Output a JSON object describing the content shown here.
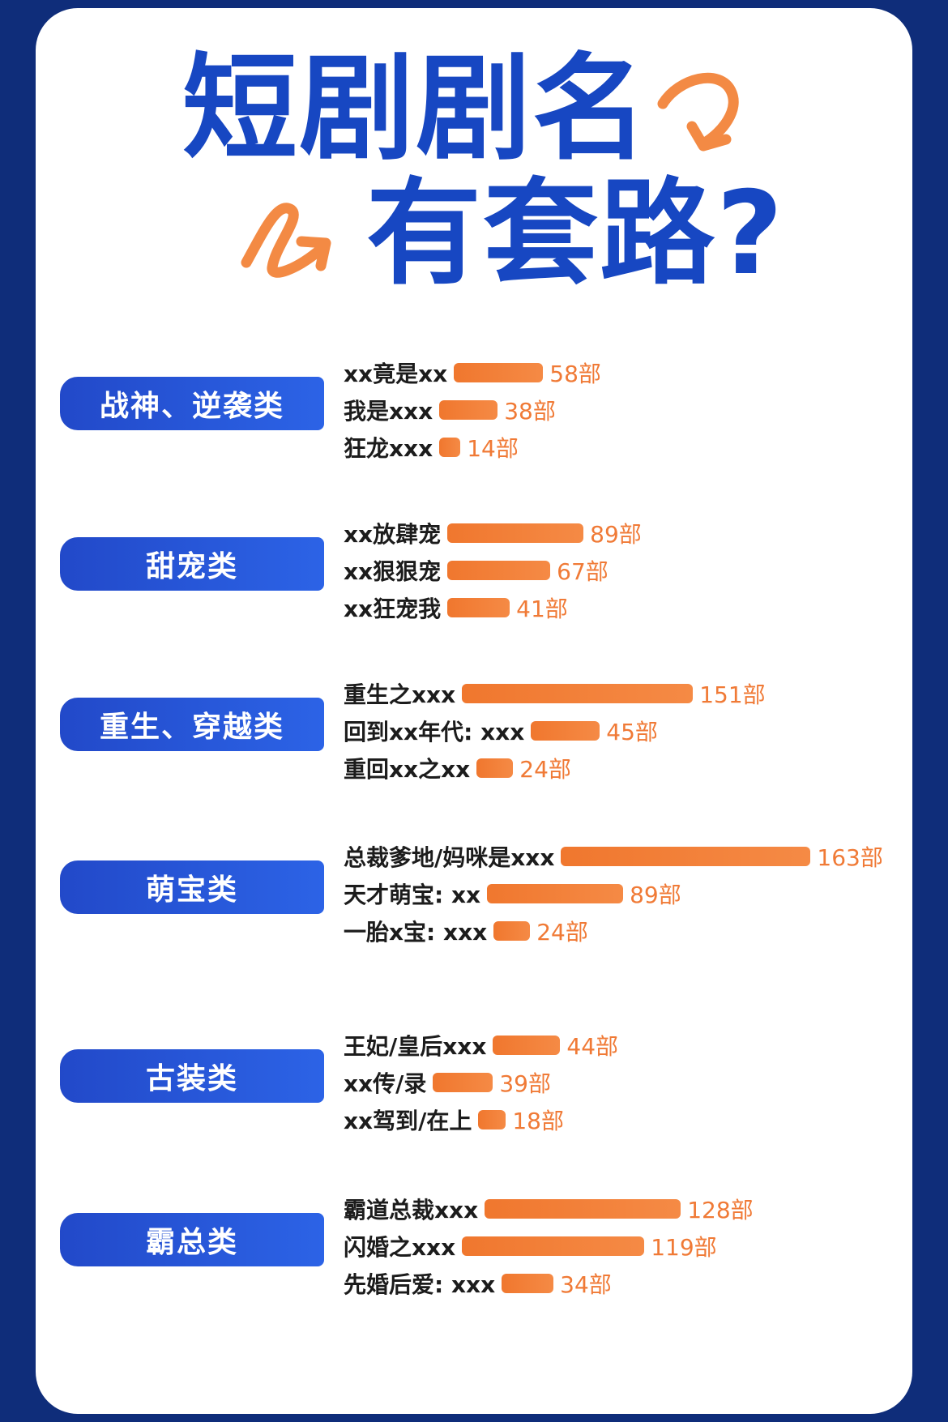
{
  "title": {
    "line1": "短剧剧名",
    "line2": "有套路?"
  },
  "colors": {
    "background": "#0f2d7a",
    "title": "#1747c2",
    "category_pill": "#2451d6",
    "bar": "#f27b34",
    "value_text": "#f07a36",
    "arrow": "#f38a44"
  },
  "icons": [
    "squiggle-arrow-icon",
    "squiggle-arrow-icon"
  ],
  "chart_data": {
    "type": "bar",
    "orientation": "horizontal",
    "unit": "部",
    "groups": [
      {
        "category": "战神、逆袭类",
        "items": [
          {
            "label": "xx竟是xx",
            "value": 58,
            "value_text": "58部"
          },
          {
            "label": "我是xxx",
            "value": 38,
            "value_text": "38部"
          },
          {
            "label": "狂龙xxx",
            "value": 14,
            "value_text": "14部"
          }
        ]
      },
      {
        "category": "甜宠类",
        "items": [
          {
            "label": "xx放肆宠",
            "value": 89,
            "value_text": "89部"
          },
          {
            "label": "xx狠狠宠",
            "value": 67,
            "value_text": "67部"
          },
          {
            "label": "xx狂宠我",
            "value": 41,
            "value_text": "41部"
          }
        ]
      },
      {
        "category": "重生、穿越类",
        "items": [
          {
            "label": "重生之xxx",
            "value": 151,
            "value_text": "151部"
          },
          {
            "label": "回到xx年代: xxx",
            "value": 45,
            "value_text": "45部"
          },
          {
            "label": "重回xx之xx",
            "value": 24,
            "value_text": "24部"
          }
        ]
      },
      {
        "category": "萌宝类",
        "items": [
          {
            "label": "总裁爹地/妈咪是xxx",
            "value": 163,
            "value_text": "163部"
          },
          {
            "label": "天才萌宝: xx",
            "value": 89,
            "value_text": "89部"
          },
          {
            "label": "一胎x宝: xxx",
            "value": 24,
            "value_text": "24部"
          }
        ]
      },
      {
        "category": "古装类",
        "items": [
          {
            "label": "王妃/皇后xxx",
            "value": 44,
            "value_text": "44部"
          },
          {
            "label": "xx传/录",
            "value": 39,
            "value_text": "39部"
          },
          {
            "label": "xx驾到/在上",
            "value": 18,
            "value_text": "18部"
          }
        ]
      },
      {
        "category": "霸总类",
        "items": [
          {
            "label": "霸道总裁xxx",
            "value": 128,
            "value_text": "128部"
          },
          {
            "label": "闪婚之xxx",
            "value": 119,
            "value_text": "119部"
          },
          {
            "label": "先婚后爱: xxx",
            "value": 34,
            "value_text": "34部"
          }
        ]
      }
    ]
  }
}
